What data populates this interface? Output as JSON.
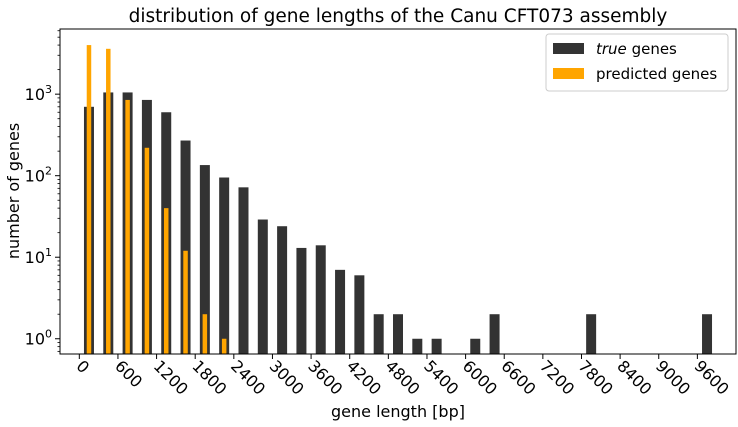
{
  "chart_data": {
    "type": "bar",
    "title": "distribution of gene lengths of the Canu CFT073 assembly",
    "xlabel": "gene length [bp]",
    "ylabel": "number of genes",
    "yscale": "log",
    "ylim": [
      0.65,
      6300
    ],
    "xlim": [
      -300,
      10200
    ],
    "x_ticks": [
      0,
      600,
      1200,
      1800,
      2400,
      3000,
      3600,
      4200,
      4800,
      5400,
      6000,
      6600,
      7200,
      7800,
      8400,
      9000,
      9600
    ],
    "y_ticks": [
      {
        "value": 1,
        "base": "10",
        "exp": "0"
      },
      {
        "value": 10,
        "base": "10",
        "exp": "1"
      },
      {
        "value": 100,
        "base": "10",
        "exp": "2"
      },
      {
        "value": 1000,
        "base": "10",
        "exp": "3"
      }
    ],
    "grid": false,
    "legend_position": "top-right",
    "series": [
      {
        "name_italic": "true",
        "name_rest": " genes",
        "color": "#333333",
        "x": [
          150,
          450,
          750,
          1050,
          1350,
          1650,
          1950,
          2250,
          2550,
          2850,
          3150,
          3450,
          3750,
          4050,
          4350,
          4650,
          4950,
          5250,
          5550,
          6150,
          6450,
          7950,
          9750
        ],
        "values": [
          700,
          1050,
          1050,
          850,
          600,
          270,
          135,
          95,
          72,
          29,
          24,
          13,
          14,
          7,
          6,
          2,
          2,
          1,
          1,
          1,
          2,
          2,
          2
        ]
      },
      {
        "name": "predicted genes",
        "color": "#ffa500",
        "x": [
          150,
          450,
          750,
          1050,
          1350,
          1650,
          1950,
          2250
        ],
        "values": [
          4000,
          3600,
          850,
          220,
          40,
          12,
          2,
          1
        ]
      }
    ]
  }
}
